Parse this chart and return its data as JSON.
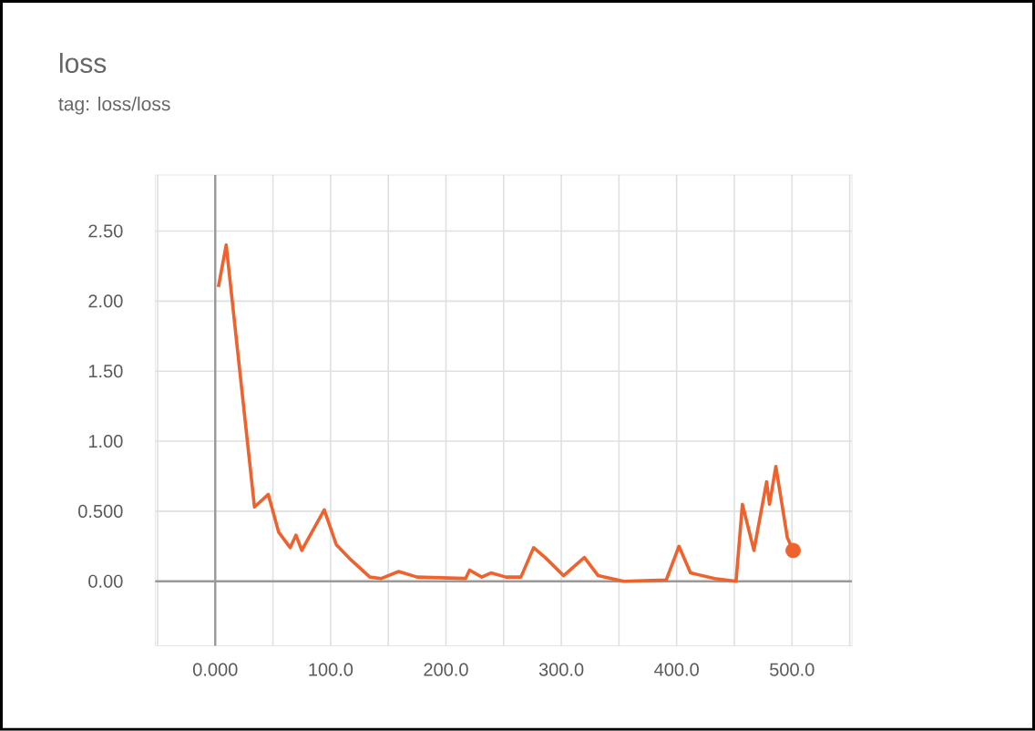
{
  "chart_data": {
    "type": "line",
    "title": "loss",
    "subtitle": "tag: loss/loss",
    "series": [
      {
        "color": "#f0622d",
        "x": [
          2.7,
          9.5,
          34,
          46,
          55,
          65,
          70,
          75,
          81,
          94.5,
          105,
          118,
          134,
          144,
          159,
          175,
          217,
          220.5,
          231,
          239,
          252,
          265,
          276,
          286,
          302,
          320,
          332,
          354,
          391,
          402,
          412,
          433,
          451.5,
          457,
          467,
          478,
          480.5,
          486,
          496,
          501
        ],
        "values": [
          2.1,
          2.4,
          0.53,
          0.62,
          0.35,
          0.24,
          0.33,
          0.22,
          0.31,
          0.51,
          0.26,
          0.15,
          0.03,
          0.02,
          0.07,
          0.03,
          0.02,
          0.08,
          0.03,
          0.06,
          0.03,
          0.03,
          0.24,
          0.17,
          0.04,
          0.17,
          0.04,
          0.0,
          0.01,
          0.25,
          0.06,
          0.02,
          0.0,
          0.55,
          0.22,
          0.71,
          0.55,
          0.82,
          0.31,
          0.22
        ]
      },
      {
        "type": "scatter",
        "marker": "circle",
        "color": "#f0622d",
        "x": [
          501
        ],
        "values": [
          0.22
        ]
      }
    ],
    "xlim": [
      -52,
      552
    ],
    "ylim": [
      -0.46,
      2.9
    ],
    "xticks": [
      {
        "value": -50,
        "label": null
      },
      {
        "value": 0,
        "label": "0.000"
      },
      {
        "value": 50,
        "label": null
      },
      {
        "value": 100,
        "label": "100.0"
      },
      {
        "value": 150,
        "label": null
      },
      {
        "value": 200,
        "label": "200.0"
      },
      {
        "value": 250,
        "label": null
      },
      {
        "value": 300,
        "label": "300.0"
      },
      {
        "value": 350,
        "label": null
      },
      {
        "value": 400,
        "label": "400.0"
      },
      {
        "value": 450,
        "label": null
      },
      {
        "value": 500,
        "label": "500.0"
      },
      {
        "value": 550,
        "label": null
      }
    ],
    "yticks": [
      {
        "value": 0,
        "label": "0.00"
      },
      {
        "value": 0.5,
        "label": "0.500"
      },
      {
        "value": 1,
        "label": "1.00"
      },
      {
        "value": 1.5,
        "label": "1.50"
      },
      {
        "value": 2,
        "label": "2.00"
      },
      {
        "value": 2.5,
        "label": "2.50"
      }
    ],
    "grid": true,
    "marker": "none",
    "line_style": "solid"
  }
}
